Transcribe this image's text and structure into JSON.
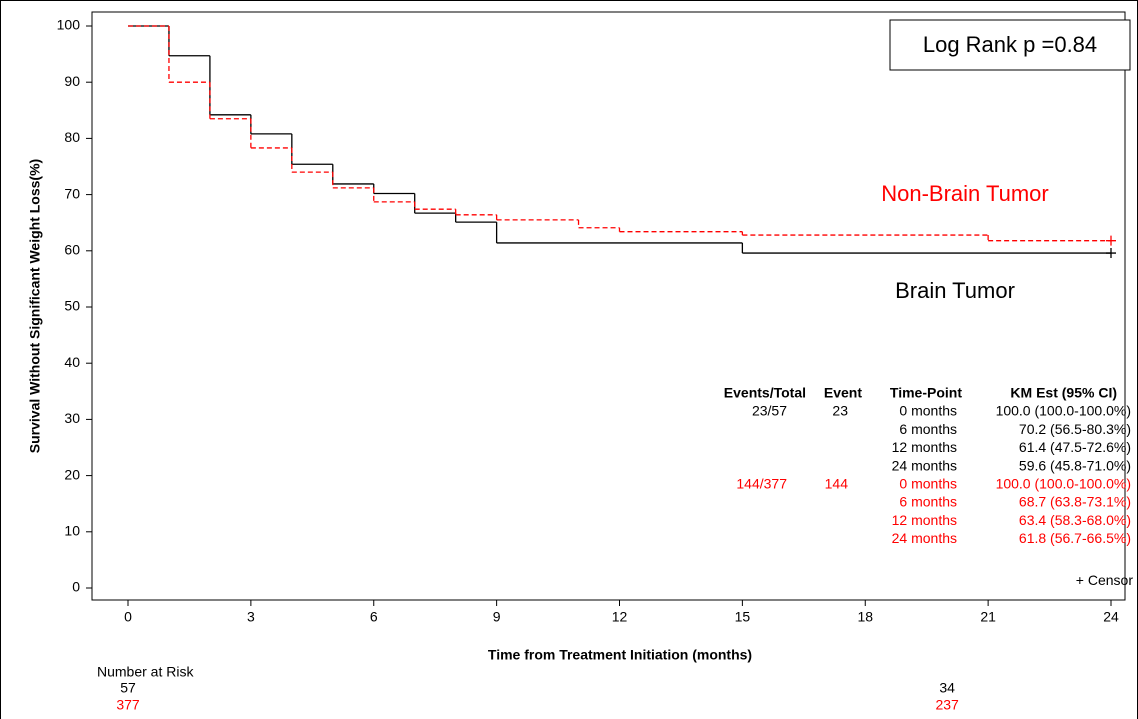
{
  "chart_data": {
    "type": "step",
    "xlabel": "Time from Treatment Initiation (months)",
    "ylabel": "Survival Without Significant Weight Loss(%)",
    "annotation": "Log Rank p =0.84",
    "censor_label": "Censor",
    "censor_symbol": "+",
    "xlim": [
      0,
      24
    ],
    "xticks": [
      0,
      3,
      6,
      9,
      12,
      15,
      18,
      21,
      24
    ],
    "ylim": [
      0,
      100
    ],
    "yticks": [
      0,
      10,
      20,
      30,
      40,
      50,
      60,
      70,
      80,
      90,
      100
    ],
    "series": [
      {
        "name": "Brain Tumor",
        "color": "#000000",
        "dashed": false,
        "x": [
          0,
          1,
          2,
          3,
          4,
          5,
          6,
          7,
          8,
          9,
          15,
          24
        ],
        "values": [
          100,
          94.7,
          84.2,
          80.8,
          75.4,
          71.9,
          70.2,
          66.7,
          65.1,
          61.4,
          59.6,
          59.6
        ]
      },
      {
        "name": "Non-Brain Tumor",
        "color": "#ff0000",
        "dashed": true,
        "x": [
          0,
          1,
          2,
          3,
          4,
          5,
          6,
          7,
          8,
          9,
          11,
          12,
          15,
          21,
          24
        ],
        "values": [
          100,
          90.0,
          83.5,
          78.3,
          74.0,
          71.2,
          68.7,
          67.4,
          66.4,
          65.5,
          64.1,
          63.4,
          62.8,
          61.8,
          61.8
        ]
      }
    ],
    "km_table": {
      "columns": [
        "Events/Total",
        "Event",
        "Time-Point",
        "KM Est (95% CI)"
      ],
      "groups": [
        {
          "color": "#000000",
          "rows": [
            [
              "23/57",
              "23",
              "0 months",
              "100.0 (100.0-100.0%)"
            ],
            [
              null,
              null,
              "6 months",
              "70.2 (56.5-80.3%)"
            ],
            [
              null,
              null,
              "12 months",
              "61.4 (47.5-72.6%)"
            ],
            [
              null,
              null,
              "24 months",
              "59.6 (45.8-71.0%)"
            ]
          ]
        },
        {
          "color": "#ff0000",
          "rows": [
            [
              "144/377",
              "144",
              "0 months",
              "100.0 (100.0-100.0%)"
            ],
            [
              null,
              null,
              "6 months",
              "68.7 (63.8-73.1%)"
            ],
            [
              null,
              null,
              "12 months",
              "63.4 (58.3-68.0%)"
            ],
            [
              null,
              null,
              "24 months",
              "61.8 (56.7-66.5%)"
            ]
          ]
        }
      ]
    },
    "risk_table": {
      "title": "Number at Risk",
      "x": [
        0,
        20
      ],
      "rows": [
        {
          "color": "#000000",
          "values": [
            57,
            34
          ]
        },
        {
          "color": "#ff0000",
          "values": [
            377,
            237
          ]
        }
      ]
    }
  }
}
